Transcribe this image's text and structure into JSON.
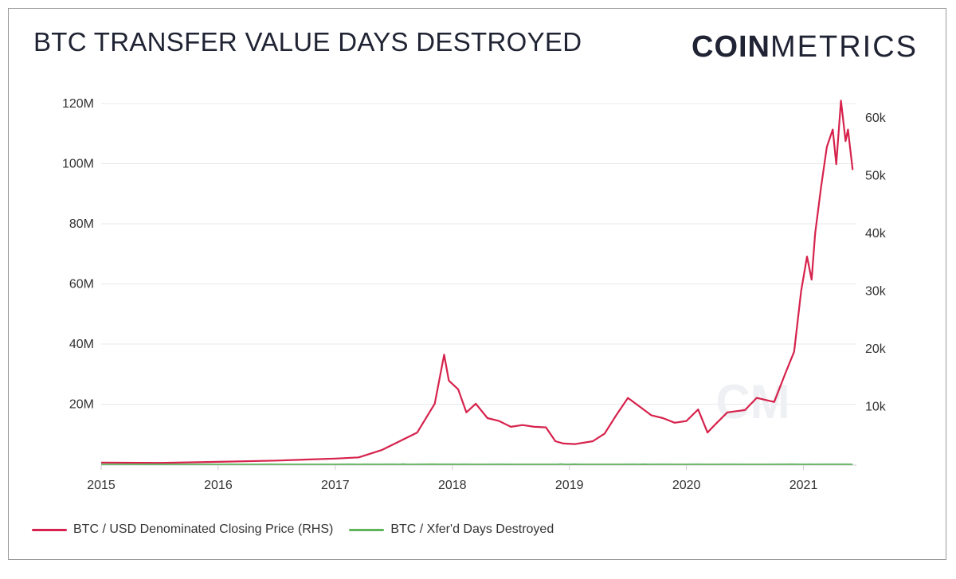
{
  "title": "BTC TRANSFER VALUE DAYS DESTROYED",
  "logo": {
    "bold": "COIN",
    "light": "METRICS"
  },
  "colors": {
    "price": "#d6224c",
    "vdd": "#5fb45c",
    "grid": "#e8e8e8",
    "axis_text": "#333333"
  },
  "chart_data": {
    "type": "line",
    "title": "BTC TRANSFER VALUE DAYS DESTROYED",
    "x_ticks": [
      "2015",
      "2016",
      "2017",
      "2018",
      "2019",
      "2020",
      "2021"
    ],
    "y_left": {
      "ticks": [
        "20M",
        "40M",
        "60M",
        "80M",
        "100M",
        "120M"
      ],
      "values": [
        20000000,
        40000000,
        60000000,
        80000000,
        100000000,
        120000000
      ],
      "lim": [
        0,
        120000000
      ]
    },
    "y_right": {
      "ticks": [
        "10k",
        "20k",
        "30k",
        "40k",
        "50k",
        "60k"
      ],
      "values": [
        10000,
        20000,
        30000,
        40000,
        50000,
        60000
      ],
      "lim": [
        0,
        60000
      ]
    },
    "grid": true,
    "legend_position": "bottom-left",
    "series": [
      {
        "name": "BTC / USD Denominated Closing Price (RHS)",
        "axis": "right",
        "x": [
          2015.0,
          2015.5,
          2016.0,
          2016.5,
          2017.0,
          2017.2,
          2017.4,
          2017.55,
          2017.7,
          2017.85,
          2017.93,
          2017.97,
          2018.05,
          2018.12,
          2018.2,
          2018.3,
          2018.4,
          2018.5,
          2018.6,
          2018.7,
          2018.8,
          2018.88,
          2018.95,
          2019.05,
          2019.2,
          2019.3,
          2019.4,
          2019.5,
          2019.6,
          2019.7,
          2019.8,
          2019.9,
          2020.0,
          2020.1,
          2020.18,
          2020.25,
          2020.35,
          2020.5,
          2020.6,
          2020.75,
          2020.85,
          2020.92,
          2020.98,
          2021.03,
          2021.07,
          2021.1,
          2021.15,
          2021.2,
          2021.25,
          2021.28,
          2021.32,
          2021.36,
          2021.38,
          2021.42
        ],
        "y": [
          300,
          250,
          430,
          650,
          1000,
          1200,
          2500,
          4000,
          5500,
          10500,
          19000,
          14500,
          13000,
          9000,
          10500,
          8000,
          7500,
          6500,
          6800,
          6500,
          6400,
          4000,
          3600,
          3500,
          4000,
          5300,
          8500,
          11500,
          10000,
          8500,
          8000,
          7200,
          7500,
          9500,
          5500,
          7000,
          9000,
          9400,
          11500,
          10800,
          16000,
          19500,
          30000,
          36000,
          32000,
          40000,
          48000,
          55000,
          58000,
          52000,
          63000,
          56000,
          58000,
          51000
        ]
      },
      {
        "name": "BTC / Xfer'd Days Destroyed",
        "axis": "left",
        "x": [
          2015.0,
          2015.05,
          2015.15,
          2015.25,
          2015.35,
          2015.45,
          2015.6,
          2015.72,
          2015.85,
          2016.0,
          2016.1,
          2016.2,
          2016.3,
          2016.45,
          2016.55,
          2016.7,
          2016.85,
          2017.0,
          2017.1,
          2017.2,
          2017.25,
          2017.35,
          2017.45,
          2017.5,
          2017.55,
          2017.58,
          2017.6,
          2017.65,
          2017.75,
          2017.85,
          2017.88,
          2017.95,
          2018.0,
          2018.05,
          2018.1,
          2018.2,
          2018.3,
          2018.4,
          2018.5,
          2018.6,
          2018.7,
          2018.8,
          2018.9,
          2018.93,
          2018.96,
          2019.0,
          2019.05,
          2019.08,
          2019.15,
          2019.3,
          2019.45,
          2019.55,
          2019.6,
          2019.63,
          2019.7,
          2019.8,
          2019.9,
          2020.0,
          2020.1,
          2020.15,
          2020.25,
          2020.35,
          2020.5,
          2020.6,
          2020.7,
          2020.8,
          2020.85,
          2020.9,
          2020.95,
          2021.0,
          2021.05,
          2021.1,
          2021.2,
          2021.3,
          2021.35,
          2021.42
        ],
        "y": [
          11000,
          5000,
          7000,
          10000,
          4000,
          8000,
          5000,
          9000,
          6000,
          8000,
          17000,
          6000,
          10000,
          16000,
          5000,
          8000,
          6000,
          9000,
          18000,
          8000,
          29000,
          12000,
          22000,
          35000,
          12000,
          85000,
          20000,
          8000,
          20000,
          51000,
          15000,
          20000,
          33000,
          10000,
          16000,
          6000,
          12000,
          14000,
          5000,
          10000,
          5000,
          9000,
          6000,
          119000,
          12000,
          5000,
          41000,
          8000,
          4000,
          10000,
          12000,
          22000,
          9000,
          47000,
          12000,
          20000,
          10000,
          13000,
          24000,
          10000,
          8000,
          14000,
          7000,
          12000,
          8000,
          14000,
          20000,
          40000,
          22000,
          10000,
          38000,
          12000,
          18000,
          16000,
          20000,
          12000
        ]
      }
    ]
  },
  "legend": [
    {
      "label": "BTC / USD Denominated Closing Price (RHS)"
    },
    {
      "label": "BTC / Xfer'd Days Destroyed"
    }
  ]
}
